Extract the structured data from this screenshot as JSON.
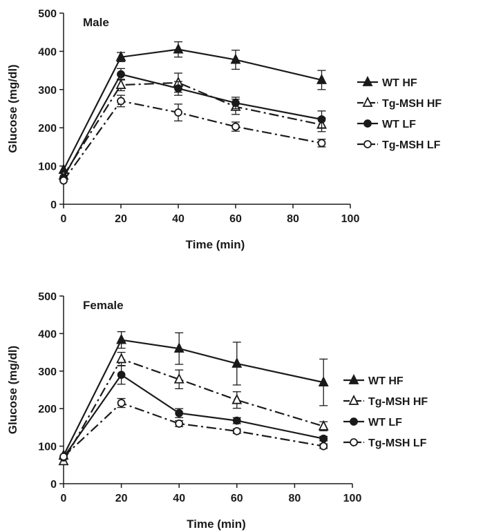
{
  "chart_data": [
    {
      "type": "line",
      "title": "Male",
      "xlabel": "Time (min)",
      "ylabel": "Glucose (mg/dl)",
      "xlim": [
        0,
        100
      ],
      "ylim": [
        0,
        500
      ],
      "xticks": [
        "0",
        "20",
        "40",
        "60",
        "80",
        "100"
      ],
      "yticks": [
        "0",
        "100",
        "200",
        "300",
        "400",
        "500"
      ],
      "legend_position": "right",
      "series": [
        {
          "name": "WT HF",
          "marker": "filled-triangle",
          "dash": "solid",
          "x": [
            0,
            20,
            40,
            60,
            90
          ],
          "y": [
            90,
            385,
            405,
            378,
            325
          ],
          "err": [
            0,
            12,
            20,
            25,
            25
          ]
        },
        {
          "name": "Tg-MSH HF",
          "marker": "open-triangle",
          "dash": "dashdot",
          "x": [
            0,
            20,
            40,
            60,
            90
          ],
          "y": [
            75,
            312,
            318,
            255,
            208
          ],
          "err": [
            0,
            15,
            25,
            20,
            18
          ]
        },
        {
          "name": "WT LF",
          "marker": "filled-circle",
          "dash": "solid",
          "x": [
            0,
            20,
            40,
            60,
            90
          ],
          "y": [
            70,
            340,
            303,
            265,
            222
          ],
          "err": [
            0,
            15,
            18,
            15,
            22
          ]
        },
        {
          "name": "Tg-MSH LF",
          "marker": "open-circle",
          "dash": "dashdot",
          "x": [
            0,
            20,
            40,
            60,
            90
          ],
          "y": [
            62,
            270,
            240,
            203,
            160
          ],
          "err": [
            0,
            15,
            22,
            12,
            10
          ]
        }
      ]
    },
    {
      "type": "line",
      "title": "Female",
      "xlabel": "Time (min)",
      "ylabel": "Glucose (mg/dl)",
      "xlim": [
        0,
        100
      ],
      "ylim": [
        0,
        500
      ],
      "xticks": [
        "0",
        "20",
        "40",
        "60",
        "80",
        "100"
      ],
      "yticks": [
        "0",
        "100",
        "200",
        "300",
        "400",
        "500"
      ],
      "legend_position": "right",
      "series": [
        {
          "name": "WT HF",
          "marker": "filled-triangle",
          "dash": "solid",
          "x": [
            0,
            20,
            40,
            60,
            90
          ],
          "y": [
            75,
            383,
            360,
            320,
            270
          ],
          "err": [
            0,
            22,
            42,
            57,
            62
          ]
        },
        {
          "name": "Tg-MSH HF",
          "marker": "open-triangle",
          "dash": "dashdot",
          "x": [
            0,
            20,
            40,
            60,
            90
          ],
          "y": [
            60,
            332,
            278,
            223,
            153
          ],
          "err": [
            0,
            18,
            25,
            22,
            12
          ]
        },
        {
          "name": "WT LF",
          "marker": "filled-circle",
          "dash": "solid",
          "x": [
            0,
            20,
            40,
            60,
            90
          ],
          "y": [
            70,
            290,
            188,
            168,
            120
          ],
          "err": [
            0,
            25,
            12,
            8,
            6
          ]
        },
        {
          "name": "Tg-MSH LF",
          "marker": "open-circle",
          "dash": "dashdot",
          "x": [
            0,
            20,
            40,
            60,
            90
          ],
          "y": [
            72,
            215,
            160,
            140,
            100
          ],
          "err": [
            0,
            12,
            8,
            6,
            6
          ]
        }
      ]
    }
  ]
}
